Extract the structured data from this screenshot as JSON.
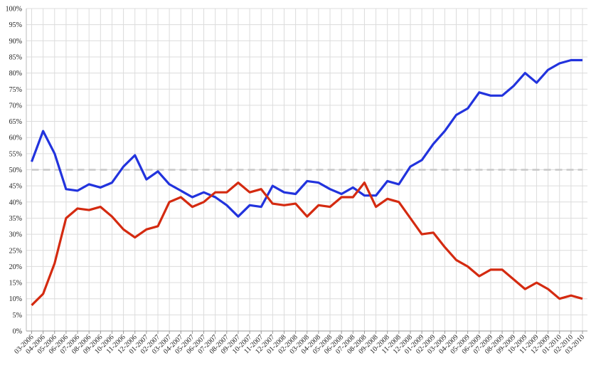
{
  "chart_data": {
    "type": "line",
    "title": "",
    "xlabel": "",
    "ylabel": "",
    "ylim": [
      0,
      100
    ],
    "y_tick_step": 5,
    "y_tick_format": "percent",
    "grid": true,
    "legend": "none",
    "x": [
      "03-2006",
      "04-2006",
      "05-2006",
      "06-2006",
      "07-2006",
      "08-2006",
      "09-2006",
      "10-2006",
      "11-2006",
      "12-2006",
      "01-2007",
      "02-2007",
      "03-2007",
      "04-2007",
      "05-2007",
      "06-2007",
      "07-2007",
      "08-2007",
      "09-2007",
      "10-2007",
      "11-2007",
      "12-2007",
      "01-2008",
      "02-2008",
      "03-2008",
      "04-2008",
      "05-2008",
      "06-2008",
      "07-2008",
      "08-2008",
      "09-2008",
      "10-2008",
      "11-2008",
      "12-2008",
      "01-2009",
      "02-2009",
      "03-2009",
      "04-2009",
      "05-2009",
      "06-2009",
      "07-2009",
      "08-2009",
      "09-2009",
      "10-2009",
      "11-2009",
      "12-2009",
      "01-2010",
      "02-2010",
      "03-2010"
    ],
    "reference_line": {
      "y": 50,
      "style": "dashed",
      "color": "#c8c8c8"
    },
    "series": [
      {
        "color": "#2233dd",
        "values": [
          52.5,
          62,
          55,
          44,
          43.5,
          45.5,
          44.5,
          46,
          51,
          54.5,
          47,
          49.5,
          45.5,
          43.5,
          41.5,
          43,
          41.5,
          39,
          35.5,
          39,
          38.5,
          45,
          43,
          42.5,
          46.5,
          46,
          44,
          42.5,
          44.5,
          42,
          42,
          46.5,
          45.5,
          51,
          53,
          58,
          62,
          67,
          69,
          74,
          73,
          73,
          76,
          80,
          77,
          81,
          83,
          84,
          84
        ]
      },
      {
        "color": "#d42a10",
        "values": [
          8,
          11.5,
          21,
          35,
          38,
          37.5,
          38.5,
          35.5,
          31.5,
          29,
          31.5,
          32.5,
          40,
          41.5,
          38.5,
          40,
          43,
          43,
          46,
          43,
          44,
          39.5,
          39,
          39.5,
          35.5,
          39,
          38.5,
          41.5,
          41.5,
          46,
          38.5,
          41,
          40,
          35,
          30,
          30.5,
          26,
          22,
          20,
          17,
          19,
          19,
          16,
          13,
          15,
          13,
          10,
          11,
          10
        ]
      }
    ]
  }
}
